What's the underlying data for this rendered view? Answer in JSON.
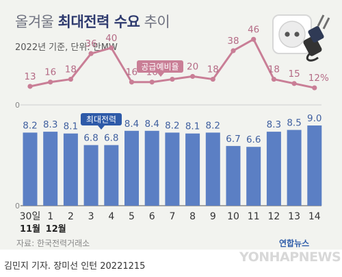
{
  "title_light": "올겨울",
  "title_bold": "최대전력 수요",
  "title_tail": "추이",
  "subtitle": "2022년 기준, 단위: 만MW",
  "source": "자료: 한국전력거래소",
  "credit": "김민지 기자. 장미선 인턴  20221215",
  "agency": "연합뉴스",
  "agency_en": "YONHAPNEWS",
  "icon": "power-outlet-and-plug-icon",
  "colors": {
    "bars": "#5b7fc4",
    "reserve_line": "#c97e96",
    "reserve_label_bg": "#c97e96",
    "peak_label_bg": "#2e5aa8",
    "background": "#f2f3ef",
    "title_bold": "#2e3a6e"
  },
  "chart_data": [
    {
      "type": "line",
      "series": [
        {
          "name": "공급예비율",
          "values": [
            13,
            16,
            18,
            36,
            40,
            16,
            16,
            18,
            20,
            18,
            38,
            46,
            18,
            15,
            12
          ]
        }
      ],
      "categories": [
        "30일",
        "1",
        "2",
        "3",
        "4",
        "5",
        "6",
        "7",
        "8",
        "9",
        "10",
        "11",
        "12",
        "13",
        "14"
      ],
      "value_labels": [
        "13",
        "16",
        "18",
        "36",
        "40",
        "16",
        "16",
        "18",
        "20",
        "18",
        "38",
        "46",
        "18",
        "15",
        "12%"
      ],
      "unit": "%",
      "baseline_label": "0",
      "ylim": [
        0,
        50
      ]
    },
    {
      "type": "bar",
      "series": [
        {
          "name": "최대전력",
          "values": [
            8.2,
            8.3,
            8.1,
            6.8,
            6.8,
            8.4,
            8.4,
            8.2,
            8.1,
            8.2,
            6.7,
            6.6,
            8.3,
            8.5,
            9.0
          ]
        }
      ],
      "categories": [
        "30일",
        "1",
        "2",
        "3",
        "4",
        "5",
        "6",
        "7",
        "8",
        "9",
        "10",
        "11",
        "12",
        "13",
        "14"
      ],
      "value_labels": [
        "8.2",
        "8.3",
        "8.1",
        "6.8",
        "6.8",
        "8.4",
        "8.4",
        "8.2",
        "8.1",
        "8.2",
        "6.7",
        "6.6",
        "8.3",
        "8.5",
        "9.0"
      ],
      "month_labels": [
        "11월",
        "12월"
      ],
      "baseline_label": "0",
      "unit": "만MW",
      "ylim": [
        0,
        9.5
      ]
    }
  ]
}
